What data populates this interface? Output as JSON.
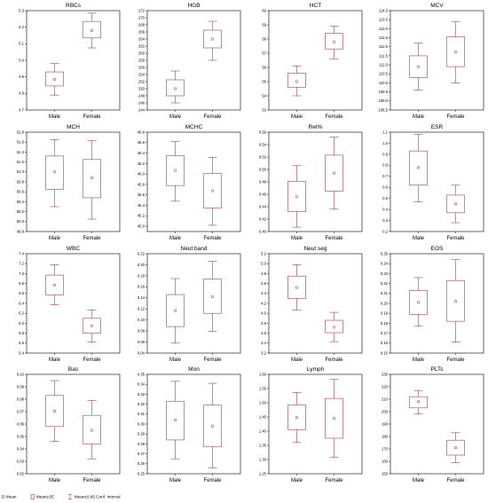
{
  "colors": {
    "box": "#a04048",
    "axis": "#000000"
  },
  "categories": [
    "Male",
    "Female"
  ],
  "legend": {
    "mean": "Mean",
    "se": "Mean±SE",
    "ci": "Mean±0.95 Conf. Interval"
  },
  "chart_data": [
    {
      "type": "box",
      "title": "RBCs",
      "categories": [
        "Male",
        "Female"
      ],
      "ylim": [
        4.7,
        5.3
      ],
      "yticks": [
        4.7,
        4.8,
        4.9,
        5.0,
        5.1,
        5.2,
        5.3
      ],
      "decimals": 1,
      "series": [
        {
          "mean": 4.885,
          "se": [
            4.845,
            4.93
          ],
          "ci": [
            4.79,
            4.98
          ]
        },
        {
          "mean": 5.18,
          "se": [
            5.135,
            5.235
          ],
          "ci": [
            5.075,
            5.285
          ]
        }
      ]
    },
    {
      "type": "box",
      "title": "HGB",
      "categories": [
        "Male",
        "Female"
      ],
      "ylim": [
        244,
        272
      ],
      "yticks": [
        244,
        246,
        248,
        250,
        252,
        254,
        256,
        258,
        260,
        262,
        264,
        266,
        268,
        270,
        272
      ],
      "decimals": 0,
      "series": [
        {
          "mean": 250,
          "se": [
            248,
            252.5
          ],
          "ci": [
            246,
            255
          ]
        },
        {
          "mean": 264,
          "se": [
            261.5,
            266.5
          ],
          "ci": [
            258,
            269
          ]
        }
      ]
    },
    {
      "type": "box",
      "title": "HCT",
      "categories": [
        "Male",
        "Female"
      ],
      "ylim": [
        53,
        60
      ],
      "yticks": [
        53,
        54,
        55,
        56,
        57,
        58,
        59,
        60
      ],
      "decimals": 0,
      "series": [
        {
          "mean": 55.0,
          "se": [
            54.6,
            55.6
          ],
          "ci": [
            54.0,
            56.1
          ]
        },
        {
          "mean": 57.8,
          "se": [
            57.3,
            58.4
          ],
          "ci": [
            56.6,
            58.9
          ]
        }
      ]
    },
    {
      "type": "box",
      "title": "MCV",
      "categories": [
        "Male",
        "Female"
      ],
      "ylim": [
        108.5,
        114.0
      ],
      "yticks": [
        108.5,
        109.0,
        109.5,
        110.0,
        110.5,
        111.0,
        111.5,
        112.0,
        112.5,
        113.0,
        113.5,
        114.0
      ],
      "decimals": 1,
      "series": [
        {
          "mean": 110.9,
          "se": [
            110.3,
            111.5
          ],
          "ci": [
            109.6,
            112.2
          ]
        },
        {
          "mean": 111.7,
          "se": [
            110.9,
            112.55
          ],
          "ci": [
            110.0,
            113.4
          ]
        }
      ]
    },
    {
      "type": "box",
      "title": "MCH",
      "categories": [
        "Male",
        "Female"
      ],
      "ylim": [
        49.8,
        51.8
      ],
      "yticks": [
        49.8,
        50.0,
        50.2,
        50.4,
        50.6,
        50.8,
        51.0,
        51.2,
        51.4,
        51.6,
        51.8
      ],
      "decimals": 1,
      "series": [
        {
          "mean": 51.0,
          "se": [
            50.65,
            51.32
          ],
          "ci": [
            50.3,
            51.65
          ]
        },
        {
          "mean": 50.88,
          "se": [
            50.48,
            51.25
          ],
          "ci": [
            50.05,
            51.63
          ]
        }
      ]
    },
    {
      "type": "box",
      "title": "MCHC",
      "categories": [
        "Male",
        "Female"
      ],
      "ylim": [
        44.9,
        46.8
      ],
      "yticks": [
        45.0,
        45.2,
        45.4,
        45.6,
        45.8,
        46.0,
        46.2,
        46.4,
        46.6,
        46.8
      ],
      "decimals": 1,
      "series": [
        {
          "mean": 46.07,
          "se": [
            45.78,
            46.35
          ],
          "ci": [
            45.48,
            46.62
          ]
        },
        {
          "mean": 45.68,
          "se": [
            45.35,
            46.01
          ],
          "ci": [
            45.02,
            46.32
          ]
        }
      ]
    },
    {
      "type": "box",
      "title": "Ret%",
      "categories": [
        "Male",
        "Female"
      ],
      "ylim": [
        0.4,
        0.56
      ],
      "yticks": [
        0.4,
        0.42,
        0.44,
        0.46,
        0.48,
        0.5,
        0.52,
        0.54,
        0.56
      ],
      "decimals": 2,
      "series": [
        {
          "mean": 0.456,
          "se": [
            0.432,
            0.481
          ],
          "ci": [
            0.407,
            0.506
          ]
        },
        {
          "mean": 0.494,
          "se": [
            0.465,
            0.523
          ],
          "ci": [
            0.436,
            0.552
          ]
        }
      ]
    },
    {
      "type": "box",
      "title": "ESR",
      "categories": [
        "Male",
        "Female"
      ],
      "ylim": [
        0.2,
        1.1
      ],
      "yticks": [
        0.2,
        0.3,
        0.4,
        0.5,
        0.6,
        0.7,
        0.8,
        0.9,
        1.0,
        1.1
      ],
      "decimals": 1,
      "series": [
        {
          "mean": 0.78,
          "se": [
            0.62,
            0.93
          ],
          "ci": [
            0.47,
            1.08
          ]
        },
        {
          "mean": 0.45,
          "se": [
            0.37,
            0.53
          ],
          "ci": [
            0.28,
            0.62
          ]
        }
      ]
    },
    {
      "type": "box",
      "title": "WBC",
      "categories": [
        "Male",
        "Female"
      ],
      "ylim": [
        5.4,
        7.4
      ],
      "yticks": [
        5.4,
        5.6,
        5.8,
        6.0,
        6.2,
        6.4,
        6.6,
        6.8,
        7.0,
        7.2,
        7.4
      ],
      "decimals": 1,
      "series": [
        {
          "mean": 6.77,
          "se": [
            6.57,
            6.97
          ],
          "ci": [
            6.37,
            7.18
          ]
        },
        {
          "mean": 5.95,
          "se": [
            5.8,
            6.1
          ],
          "ci": [
            5.62,
            6.27
          ]
        }
      ]
    },
    {
      "type": "box",
      "title": "Neut band",
      "categories": [
        "Male",
        "Female"
      ],
      "ylim": [
        0.04,
        0.22
      ],
      "yticks": [
        0.04,
        0.06,
        0.08,
        0.1,
        0.12,
        0.14,
        0.16,
        0.18,
        0.2,
        0.22
      ],
      "decimals": 2,
      "series": [
        {
          "mean": 0.117,
          "se": [
            0.088,
            0.146
          ],
          "ci": [
            0.058,
            0.175
          ]
        },
        {
          "mean": 0.142,
          "se": [
            0.112,
            0.174
          ],
          "ci": [
            0.079,
            0.206
          ]
        }
      ]
    },
    {
      "type": "box",
      "title": "Neut seg",
      "categories": [
        "Male",
        "Female"
      ],
      "ylim": [
        3.2,
        5.2
      ],
      "yticks": [
        3.2,
        3.4,
        3.6,
        3.8,
        4.0,
        4.2,
        4.4,
        4.6,
        4.8,
        5.0,
        5.2
      ],
      "decimals": 1,
      "series": [
        {
          "mean": 4.52,
          "se": [
            4.3,
            4.75
          ],
          "ci": [
            4.07,
            4.98
          ]
        },
        {
          "mean": 3.72,
          "se": [
            3.61,
            3.86
          ],
          "ci": [
            3.43,
            4.02
          ]
        }
      ]
    },
    {
      "type": "box",
      "title": "EOS",
      "categories": [
        "Male",
        "Female"
      ],
      "ylim": [
        0.15,
        0.25
      ],
      "yticks": [
        0.15,
        0.16,
        0.17,
        0.18,
        0.19,
        0.2,
        0.21,
        0.22,
        0.23,
        0.24,
        0.25
      ],
      "decimals": 2,
      "series": [
        {
          "mean": 0.201,
          "se": [
            0.189,
            0.213
          ],
          "ci": [
            0.177,
            0.226
          ]
        },
        {
          "mean": 0.202,
          "se": [
            0.182,
            0.223
          ],
          "ci": [
            0.161,
            0.244
          ]
        }
      ]
    },
    {
      "type": "box",
      "title": "Bas",
      "categories": [
        "Male",
        "Female"
      ],
      "ylim": [
        0.02,
        0.1
      ],
      "yticks": [
        0.02,
        0.03,
        0.04,
        0.05,
        0.06,
        0.07,
        0.08,
        0.09,
        0.1
      ],
      "decimals": 2,
      "series": [
        {
          "mean": 0.0705,
          "se": [
            0.058,
            0.083
          ],
          "ci": [
            0.046,
            0.095
          ]
        },
        {
          "mean": 0.055,
          "se": [
            0.044,
            0.067
          ],
          "ci": [
            0.032,
            0.079
          ]
        }
      ]
    },
    {
      "type": "box",
      "title": "Mon",
      "categories": [
        "Male",
        "Female"
      ],
      "ylim": [
        0.25,
        0.35
      ],
      "yticks": [
        0.25,
        0.26,
        0.27,
        0.28,
        0.29,
        0.3,
        0.31,
        0.32,
        0.33,
        0.34,
        0.35
      ],
      "decimals": 2,
      "series": [
        {
          "mean": 0.304,
          "se": [
            0.284,
            0.323
          ],
          "ci": [
            0.265,
            0.343
          ]
        },
        {
          "mean": 0.298,
          "se": [
            0.277,
            0.319
          ],
          "ci": [
            0.256,
            0.341
          ]
        }
      ]
    },
    {
      "type": "box",
      "title": "Lymph",
      "categories": [
        "Male",
        "Female"
      ],
      "ylim": [
        1.25,
        1.6
      ],
      "yticks": [
        1.25,
        1.3,
        1.35,
        1.4,
        1.45,
        1.5,
        1.55,
        1.6
      ],
      "decimals": 2,
      "series": [
        {
          "mean": 1.448,
          "se": [
            1.405,
            1.492
          ],
          "ci": [
            1.36,
            1.536
          ]
        },
        {
          "mean": 1.445,
          "se": [
            1.375,
            1.515
          ],
          "ci": [
            1.307,
            1.582
          ]
        }
      ]
    },
    {
      "type": "box",
      "title": "PLTs",
      "categories": [
        "Male",
        "Female"
      ],
      "ylim": [
        150,
        230
      ],
      "yticks": [
        150,
        160,
        170,
        180,
        190,
        200,
        210,
        220,
        230
      ],
      "decimals": 0,
      "series": [
        {
          "mean": 208,
          "se": [
            203,
            212
          ],
          "ci": [
            198,
            217
          ]
        },
        {
          "mean": 171,
          "se": [
            165,
            177
          ],
          "ci": [
            159,
            183
          ]
        }
      ]
    }
  ]
}
